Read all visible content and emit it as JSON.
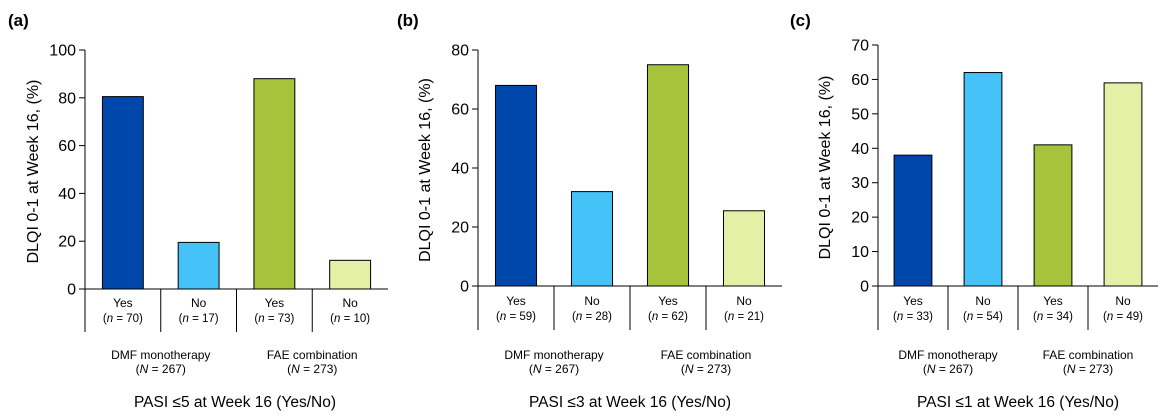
{
  "chart_data": [
    {
      "panel": "(a)",
      "type": "bar",
      "ylabel": "DLQI 0-1 at Week 16, (%)",
      "xlabel": "PASI ≤5 at Week 16 (Yes/No)",
      "ylim": [
        0,
        100
      ],
      "yticks": [
        0,
        20,
        40,
        60,
        80,
        100
      ],
      "groups": [
        {
          "label": "DMF monotherapy",
          "n_label": "(N = 267)"
        },
        {
          "label": "FAE combination",
          "n_label": "(N = 273)"
        }
      ],
      "categories": [
        "Yes",
        "No",
        "Yes",
        "No"
      ],
      "category_n": [
        "(n = 70)",
        "(n = 17)",
        "(n = 73)",
        "(n = 10)"
      ],
      "values": [
        80.5,
        19.5,
        88,
        12
      ],
      "colors": [
        "#0047AB",
        "#45C2F7",
        "#A6C33C",
        "#E3F0A6"
      ]
    },
    {
      "panel": "(b)",
      "type": "bar",
      "ylabel": "DLQI 0-1 at Week 16, (%)",
      "xlabel": "PASI ≤3 at Week 16 (Yes/No)",
      "ylim": [
        0,
        80
      ],
      "yticks": [
        0,
        20,
        40,
        60,
        80
      ],
      "groups": [
        {
          "label": "DMF monotherapy",
          "n_label": "(N = 267)"
        },
        {
          "label": "FAE combination",
          "n_label": "(N = 273)"
        }
      ],
      "categories": [
        "Yes",
        "No",
        "Yes",
        "No"
      ],
      "category_n": [
        "(n = 59)",
        "(n = 28)",
        "(n = 62)",
        "(n = 21)"
      ],
      "values": [
        68,
        32,
        75,
        25.5
      ],
      "colors": [
        "#0047AB",
        "#45C2F7",
        "#A6C33C",
        "#E3F0A6"
      ]
    },
    {
      "panel": "(c)",
      "type": "bar",
      "ylabel": "DLQI 0-1 at Week 16, (%)",
      "xlabel": "PASI ≤1 at Week 16 (Yes/No)",
      "ylim": [
        0,
        70
      ],
      "yticks": [
        0,
        10,
        20,
        30,
        40,
        50,
        60,
        70
      ],
      "groups": [
        {
          "label": "DMF monotherapy",
          "n_label": "(N = 267)"
        },
        {
          "label": "FAE combination",
          "n_label": "(N = 273)"
        }
      ],
      "categories": [
        "Yes",
        "No",
        "Yes",
        "No"
      ],
      "category_n": [
        "(n = 33)",
        "(n = 54)",
        "(n = 34)",
        "(n = 49)"
      ],
      "values": [
        38,
        62,
        41,
        59
      ],
      "colors": [
        "#0047AB",
        "#45C2F7",
        "#A6C33C",
        "#E3F0A6"
      ]
    }
  ]
}
